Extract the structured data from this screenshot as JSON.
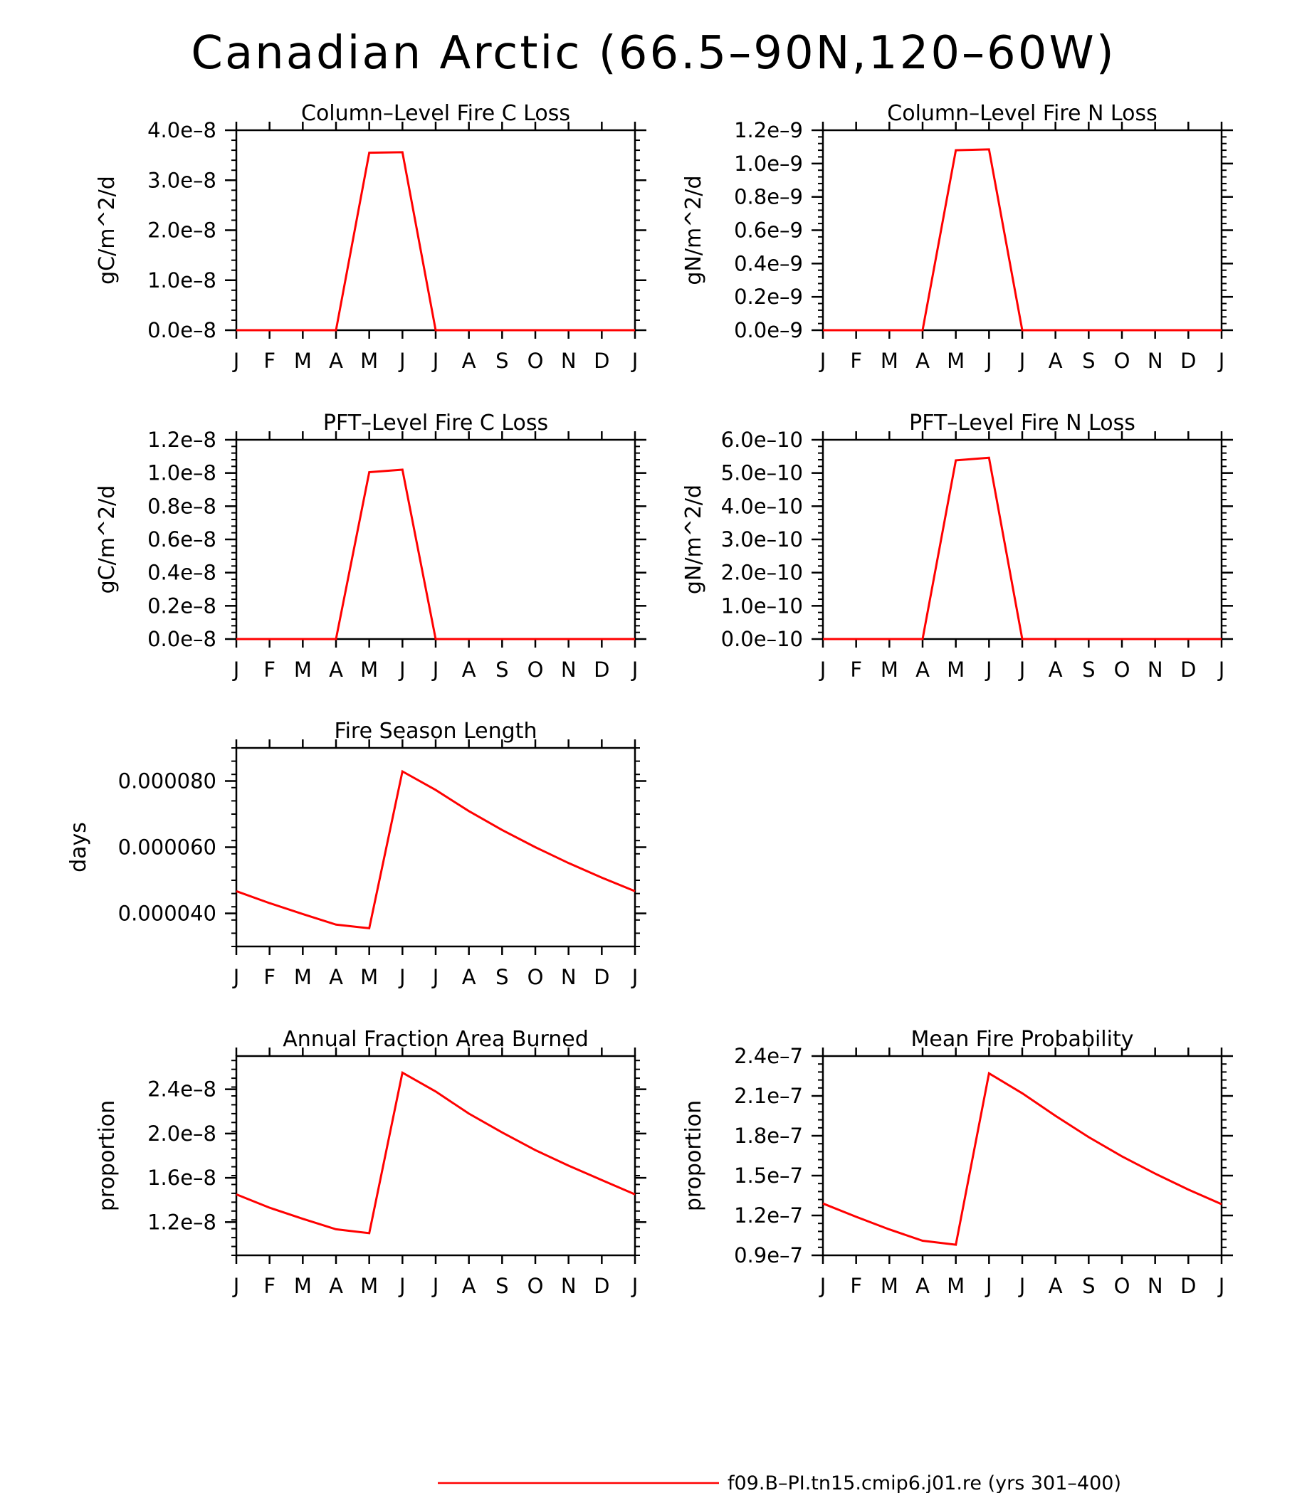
{
  "figure": {
    "title": "Canadian Arctic (66.5–90N,120–60W)"
  },
  "legend": {
    "label": "f09.B–PI.tn15.cmip6.j01.re (yrs 301–400)",
    "color": "#ff0000"
  },
  "chart_data": [
    {
      "type": "line",
      "title": "Column–Level Fire C Loss",
      "ylabel": "gC/m^2/d",
      "x": [
        "J",
        "F",
        "M",
        "A",
        "M",
        "J",
        "J",
        "A",
        "S",
        "O",
        "N",
        "D",
        "J"
      ],
      "ylim": [
        0,
        4e-08
      ],
      "yticks": [
        0,
        1e-08,
        2e-08,
        3e-08,
        4e-08
      ],
      "yticklabels": [
        "0.0e–8",
        "1.0e–8",
        "2.0e–8",
        "3.0e–8",
        "4.0e–8"
      ],
      "series": [
        {
          "color": "#ff0000",
          "values": [
            0,
            0,
            0,
            0,
            3.55e-08,
            3.56e-08,
            0,
            0,
            0,
            0,
            0,
            0,
            0
          ]
        }
      ]
    },
    {
      "type": "line",
      "title": "Column–Level Fire N Loss",
      "ylabel": "gN/m^2/d",
      "x": [
        "J",
        "F",
        "M",
        "A",
        "M",
        "J",
        "J",
        "A",
        "S",
        "O",
        "N",
        "D",
        "J"
      ],
      "ylim": [
        0,
        1.2e-09
      ],
      "yticks": [
        0,
        2e-10,
        4e-10,
        6e-10,
        8e-10,
        1e-09,
        1.2e-09
      ],
      "yticklabels": [
        "0.0e–9",
        "0.2e–9",
        "0.4e–9",
        "0.6e–9",
        "0.8e–9",
        "1.0e–9",
        "1.2e–9"
      ],
      "series": [
        {
          "color": "#ff0000",
          "values": [
            0,
            0,
            0,
            0,
            1.08e-09,
            1.085e-09,
            0,
            0,
            0,
            0,
            0,
            0,
            0
          ]
        }
      ]
    },
    {
      "type": "line",
      "title": "PFT–Level Fire C Loss",
      "ylabel": "gC/m^2/d",
      "x": [
        "J",
        "F",
        "M",
        "A",
        "M",
        "J",
        "J",
        "A",
        "S",
        "O",
        "N",
        "D",
        "J"
      ],
      "ylim": [
        0,
        1.2e-08
      ],
      "yticks": [
        0,
        2e-09,
        4e-09,
        6e-09,
        8e-09,
        1e-08,
        1.2e-08
      ],
      "yticklabels": [
        "0.0e–8",
        "0.2e–8",
        "0.4e–8",
        "0.6e–8",
        "0.8e–8",
        "1.0e–8",
        "1.2e–8"
      ],
      "series": [
        {
          "color": "#ff0000",
          "values": [
            0,
            0,
            0,
            0,
            1.005e-08,
            1.02e-08,
            0,
            0,
            0,
            0,
            0,
            0,
            0
          ]
        }
      ]
    },
    {
      "type": "line",
      "title": "PFT–Level Fire N Loss",
      "ylabel": "gN/m^2/d",
      "x": [
        "J",
        "F",
        "M",
        "A",
        "M",
        "J",
        "J",
        "A",
        "S",
        "O",
        "N",
        "D",
        "J"
      ],
      "ylim": [
        0,
        6e-10
      ],
      "yticks": [
        0,
        1e-10,
        2e-10,
        3e-10,
        4e-10,
        5e-10,
        6e-10
      ],
      "yticklabels": [
        "0.0e–10",
        "1.0e–10",
        "2.0e–10",
        "3.0e–10",
        "4.0e–10",
        "5.0e–10",
        "6.0e–10"
      ],
      "series": [
        {
          "color": "#ff0000",
          "values": [
            0,
            0,
            0,
            0,
            5.38e-10,
            5.46e-10,
            0,
            0,
            0,
            0,
            0,
            0,
            0
          ]
        }
      ]
    },
    {
      "type": "line",
      "title": "Fire Season Length",
      "ylabel": "days",
      "x": [
        "J",
        "F",
        "M",
        "A",
        "M",
        "J",
        "J",
        "A",
        "S",
        "O",
        "N",
        "D",
        "J"
      ],
      "ylim": [
        3e-05,
        9e-05
      ],
      "yticks": [
        4e-05,
        6e-05,
        8e-05
      ],
      "yticklabels": [
        "0.000040",
        "0.000060",
        "0.000080"
      ],
      "series": [
        {
          "color": "#ff0000",
          "values": [
            4.67e-05,
            4.31e-05,
            3.98e-05,
            3.66e-05,
            3.55e-05,
            8.29e-05,
            7.73e-05,
            7.09e-05,
            6.52e-05,
            6e-05,
            5.52e-05,
            5.08e-05,
            4.67e-05
          ]
        }
      ]
    },
    {
      "type": "line",
      "title": "Annual Fraction Area Burned",
      "ylabel": "proportion",
      "x": [
        "J",
        "F",
        "M",
        "A",
        "M",
        "J",
        "J",
        "A",
        "S",
        "O",
        "N",
        "D",
        "J"
      ],
      "ylim": [
        9e-09,
        2.7e-08
      ],
      "yticks": [
        1.2e-08,
        1.6e-08,
        2e-08,
        2.4e-08
      ],
      "yticklabels": [
        "1.2e–8",
        "1.6e–8",
        "2.0e–8",
        "2.4e–8"
      ],
      "series": [
        {
          "color": "#ff0000",
          "values": [
            1.45e-08,
            1.33e-08,
            1.23e-08,
            1.135e-08,
            1.1e-08,
            2.55e-08,
            2.38e-08,
            2.18e-08,
            2.01e-08,
            1.85e-08,
            1.71e-08,
            1.58e-08,
            1.45e-08
          ]
        }
      ]
    },
    {
      "type": "line",
      "title": "Mean Fire Probability",
      "ylabel": "proportion",
      "x": [
        "J",
        "F",
        "M",
        "A",
        "M",
        "J",
        "J",
        "A",
        "S",
        "O",
        "N",
        "D",
        "J"
      ],
      "ylim": [
        9e-08,
        2.4e-07
      ],
      "yticks": [
        9e-08,
        1.2e-07,
        1.5e-07,
        1.8e-07,
        2.1e-07,
        2.4e-07
      ],
      "yticklabels": [
        "0.9e–7",
        "1.2e–7",
        "1.5e–7",
        "1.8e–7",
        "2.1e–7",
        "2.4e–7"
      ],
      "series": [
        {
          "color": "#ff0000",
          "values": [
            1.29e-07,
            1.19e-07,
            1.095e-07,
            1.01e-07,
            9.8e-08,
            2.27e-07,
            2.12e-07,
            1.95e-07,
            1.79e-07,
            1.645e-07,
            1.515e-07,
            1.395e-07,
            1.285e-07
          ]
        }
      ]
    }
  ]
}
